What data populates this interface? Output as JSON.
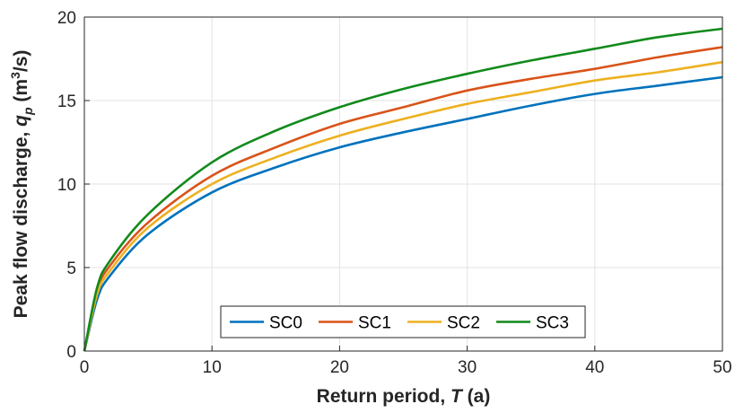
{
  "chart_data": {
    "type": "line",
    "xlabel": {
      "prefix": "Return period, ",
      "symbol": "T",
      "suffix": " (a)"
    },
    "ylabel": {
      "prefix": "Peak flow discharge, ",
      "symbol": "q",
      "sub": "p",
      "unit_open": " (m",
      "sup": "3",
      "unit_close": "/s)"
    },
    "xlim": [
      0,
      50
    ],
    "ylim": [
      0,
      20
    ],
    "xticks": [
      "0",
      "10",
      "20",
      "30",
      "40",
      "50"
    ],
    "yticks": [
      "0",
      "5",
      "10",
      "15",
      "20"
    ],
    "grid": true,
    "legend_position": "bottom-center",
    "x": [
      0,
      1,
      2,
      5,
      10,
      15,
      20,
      25,
      30,
      35,
      40,
      45,
      50
    ],
    "series": [
      {
        "name": "SC0",
        "color": "#0072BD",
        "values": [
          0,
          3.1,
          4.5,
          7.0,
          9.5,
          11.0,
          12.2,
          13.1,
          13.9,
          14.7,
          15.4,
          15.9,
          16.4
        ]
      },
      {
        "name": "SC1",
        "color": "#D95319",
        "values": [
          0,
          3.6,
          5.1,
          7.7,
          10.5,
          12.2,
          13.6,
          14.6,
          15.6,
          16.3,
          16.9,
          17.6,
          18.2
        ]
      },
      {
        "name": "SC2",
        "color": "#EDB120",
        "values": [
          0,
          3.4,
          4.8,
          7.4,
          10.0,
          11.6,
          12.9,
          13.9,
          14.8,
          15.5,
          16.2,
          16.7,
          17.3
        ]
      },
      {
        "name": "SC3",
        "color": "#118A1B",
        "values": [
          0,
          3.8,
          5.4,
          8.2,
          11.3,
          13.2,
          14.6,
          15.7,
          16.6,
          17.4,
          18.1,
          18.8,
          19.3
        ]
      }
    ]
  }
}
